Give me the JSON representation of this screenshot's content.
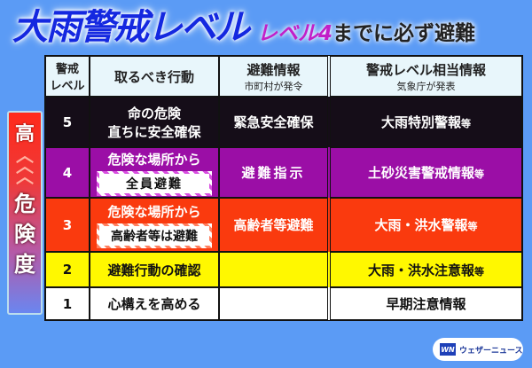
{
  "title": {
    "main": "大雨警戒レベル",
    "sub_highlight": "レベル4",
    "sub_rest": "までに必ず避難"
  },
  "side": {
    "top": "高",
    "chevron_icon": "chevron-up-double",
    "label": [
      "危",
      "険",
      "度"
    ]
  },
  "table": {
    "headers": {
      "level": "警戒\nレベル",
      "action": "取るべき行動",
      "evac": "避難情報",
      "evac_sub": "市町村が発令",
      "warn": "警戒レベル相当情報",
      "warn_sub": "気象庁が発表"
    },
    "rows": [
      {
        "level": "5",
        "action": "命の危険",
        "action2": "直ちに安全確保",
        "evac": "緊急安全確保",
        "warn": "大雨特別警報",
        "warn_suffix": "等",
        "color": "#150d18"
      },
      {
        "level": "4",
        "action": "危険な場所から",
        "tag": "全員避難",
        "evac": "避難指示",
        "warn": "土砂災害警戒情報",
        "warn_suffix": "等",
        "color": "#9b0ea6"
      },
      {
        "level": "3",
        "action": "危険な場所から",
        "tag": "高齢者等は避難",
        "evac": "高齢者等避難",
        "warn": "大雨・洪水警報",
        "warn_suffix": "等",
        "color": "#fa3a0e"
      },
      {
        "level": "2",
        "action": "避難行動の確認",
        "evac": "",
        "warn": "大雨・洪水注意報",
        "warn_suffix": "等",
        "color": "#fff800"
      },
      {
        "level": "1",
        "action": "心構えを高める",
        "evac": "",
        "warn": "早期注意情報",
        "warn_suffix": "",
        "color": "#ffffff"
      }
    ]
  },
  "logo": {
    "mark": "WN",
    "text": "ウェザーニュース"
  }
}
